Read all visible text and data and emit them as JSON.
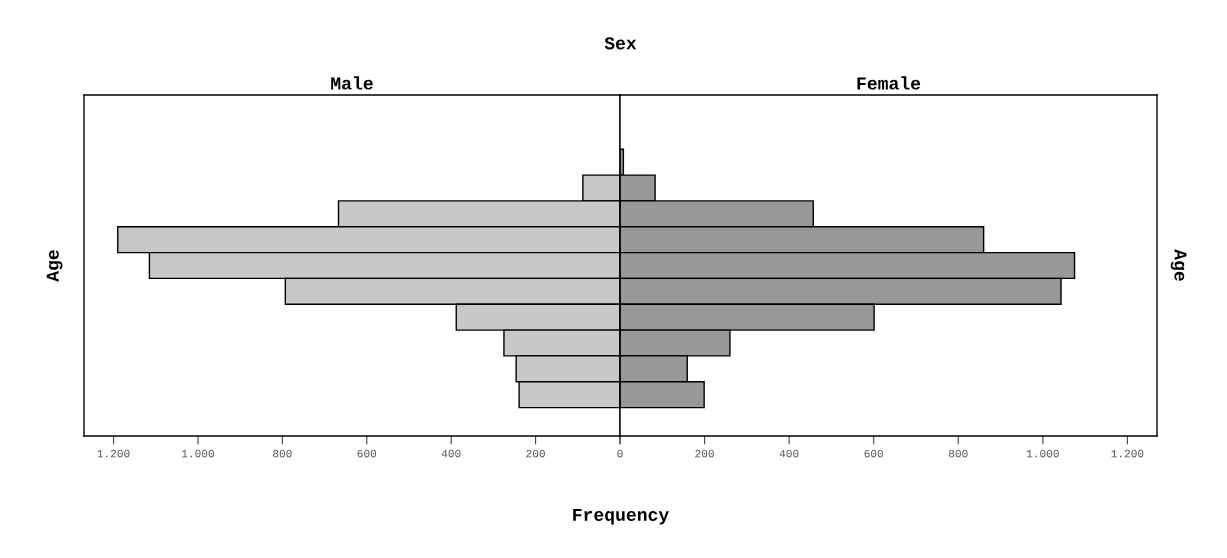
{
  "chart_data": [
    {
      "type": "bar",
      "orientation": "horizontal",
      "title": "Male",
      "annotations": [
        "Sex"
      ],
      "ylabel": "Age",
      "categories": [
        null,
        null,
        null,
        null,
        null,
        null,
        null,
        null,
        null,
        null,
        null,
        null,
        null
      ],
      "series": [
        {
          "color": "#c8c8c8",
          "values": [
            null,
            null,
            null,
            88,
            667,
            1190,
            1115,
            793,
            388,
            275,
            246,
            239,
            null
          ]
        }
      ],
      "xlim": [
        1270,
        0
      ],
      "xticks": [
        {
          "value": 1200,
          "label": "1.200"
        },
        {
          "value": 1000,
          "label": "1.000"
        },
        800,
        600,
        400,
        200,
        {
          "value": 0,
          "label": null
        }
      ]
    },
    {
      "type": "bar",
      "orientation": "horizontal",
      "title": "Female",
      "xlabel": "Frequency",
      "y2label": "Age",
      "categories": [
        null,
        null,
        null,
        null,
        null,
        null,
        null,
        null,
        null,
        null,
        null,
        null,
        null
      ],
      "series": [
        {
          "color": "#989898",
          "values": [
            null,
            null,
            8,
            83,
            457,
            860,
            1075,
            1043,
            601,
            260,
            159,
            199,
            null
          ]
        }
      ],
      "xlim": [
        0,
        1270
      ],
      "xticks": [
        0,
        200,
        400,
        600,
        800,
        {
          "value": 1000,
          "label": "1.000"
        },
        {
          "value": 1200,
          "label": "1.200"
        }
      ]
    }
  ]
}
